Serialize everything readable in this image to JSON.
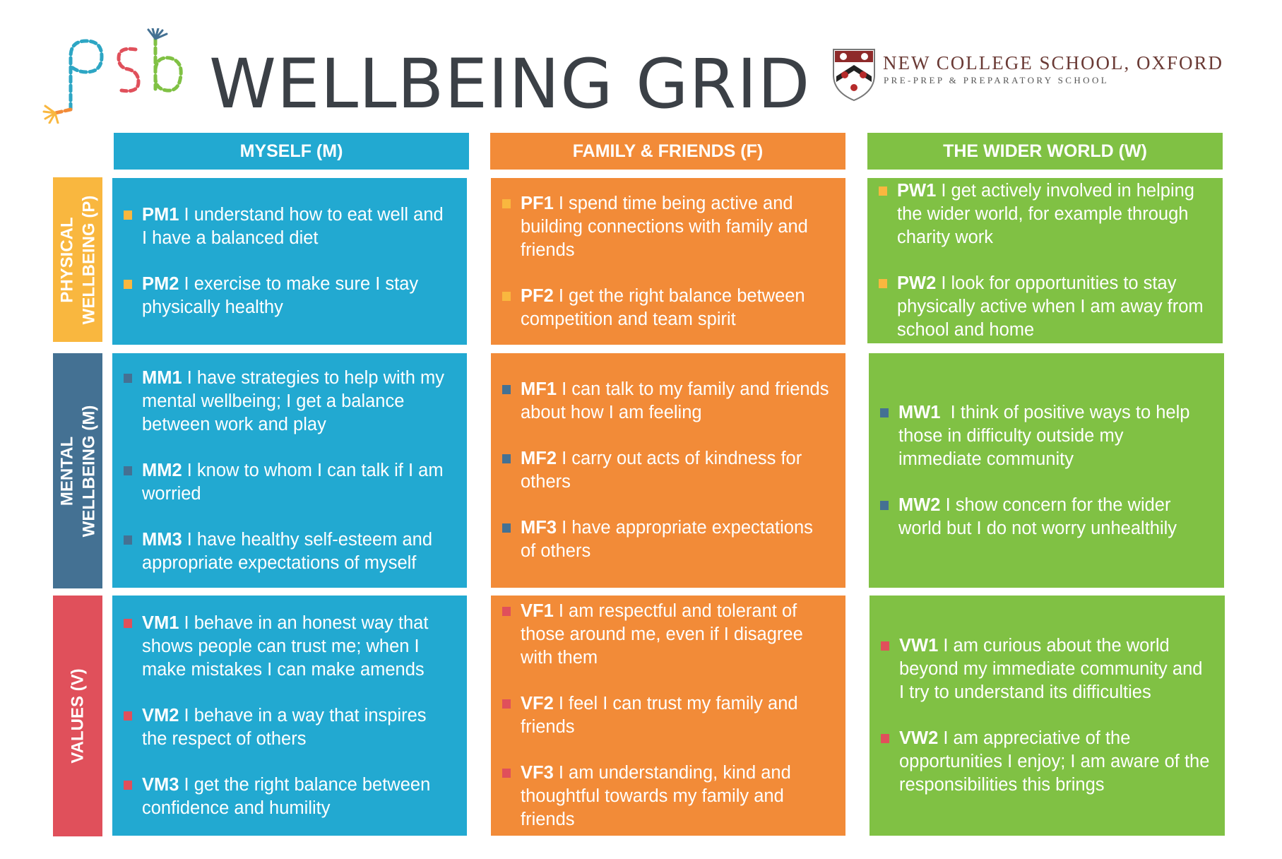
{
  "header": {
    "title": "WELLBEING GRID",
    "school_name": "NEW COLLEGE SCHOOL, OXFORD",
    "school_subtitle": "PRE-PREP & PREPARATORY SCHOOL",
    "logo_letters": "psb"
  },
  "colors": {
    "blue": "#22a9d1",
    "orange": "#f28b38",
    "green": "#80c144",
    "yellow": "#f9b73f",
    "navy": "#447193",
    "red": "#e0505b",
    "title_gray": "#3b4046",
    "school_maroon": "#6a3a35"
  },
  "columns": [
    {
      "label": "MYSELF (M)"
    },
    {
      "label": "FAMILY & FRIENDS (F)"
    },
    {
      "label": "THE WIDER WORLD (W)"
    }
  ],
  "rows": [
    {
      "label_line1": "PHYSICAL",
      "label_line2": "WELLBEING (P)"
    },
    {
      "label_line1": "MENTAL",
      "label_line2": "WELLBEING (M)"
    },
    {
      "label_line1": "VALUES (V)",
      "label_line2": ""
    }
  ],
  "cells": {
    "pm": [
      {
        "code": "PM1",
        "text": " I understand how to eat well and I have a balanced diet"
      },
      {
        "code": "PM2",
        "text": " I exercise to make sure I stay physically healthy"
      }
    ],
    "pf": [
      {
        "code": "PF1",
        "text": " I spend time being active and building connections with family and friends"
      },
      {
        "code": "PF2",
        "text": " I get the right balance between competition and team spirit"
      }
    ],
    "pw": [
      {
        "code": "PW1",
        "text": " I get actively involved in helping the wider world, for example through charity work"
      },
      {
        "code": "PW2",
        "text": " I look for opportunities to stay physically active when I am away from school and home"
      }
    ],
    "mm": [
      {
        "code": "MM1",
        "text": " I have strategies to help with my mental wellbeing; I get a balance between work and play"
      },
      {
        "code": "MM2",
        "text": " I know to whom I can talk if I am worried"
      },
      {
        "code": "MM3",
        "text": " I have healthy self-esteem and appropriate expectations of myself"
      }
    ],
    "mf": [
      {
        "code": "MF1",
        "text": " I can talk to my family and friends about how I am feeling"
      },
      {
        "code": "MF2",
        "text": " I carry out acts of kindness for others"
      },
      {
        "code": "MF3",
        "text": " I have appropriate expectations of others"
      }
    ],
    "mw": [
      {
        "code": "MW1",
        "text": "  I think of positive ways to help those in difficulty outside my immediate community"
      },
      {
        "code": "MW2",
        "text": " I show concern for the wider world but I do not worry unhealthily"
      }
    ],
    "vm": [
      {
        "code": "VM1",
        "text": " I behave in an honest way that shows people can trust me; when I make mistakes I can make amends"
      },
      {
        "code": "VM2",
        "text": " I behave in a way that inspires the respect of others"
      },
      {
        "code": "VM3",
        "text": " I get the right balance between confidence and humility"
      }
    ],
    "vf": [
      {
        "code": "VF1",
        "text": " I am respectful and tolerant of those around me, even if I disagree with them"
      },
      {
        "code": "VF2",
        "text": " I feel I can trust my family and friends"
      },
      {
        "code": "VF3",
        "text": " I am understanding, kind and thoughtful towards my family and friends"
      }
    ],
    "vw": [
      {
        "code": "VW1",
        "text": " I am curious about the world beyond my immediate community and I try to understand its difficulties"
      },
      {
        "code": "VW2",
        "text": " I am appreciative of the opportunities I enjoy; I am aware of the responsibilities this brings"
      }
    ]
  }
}
